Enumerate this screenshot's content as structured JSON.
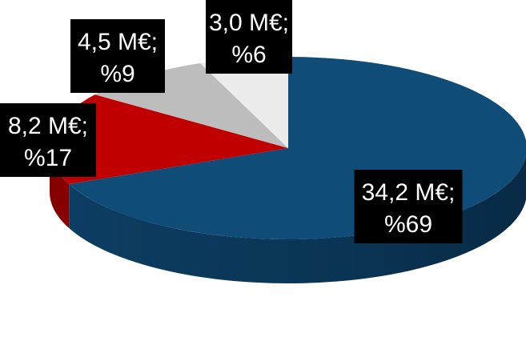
{
  "chart_data": {
    "type": "pie",
    "style": "3d",
    "title": "",
    "unit": "M€",
    "slices": [
      {
        "value": 34.2,
        "percent": 69,
        "label": "34,2 M€;",
        "percent_label": "%69",
        "color": "#0f4c78",
        "side_color": "#0a3557"
      },
      {
        "value": 8.2,
        "percent": 17,
        "label": "8,2 M€;",
        "percent_label": "%17",
        "color": "#c00000",
        "side_color": "#870000"
      },
      {
        "value": 4.5,
        "percent": 9,
        "label": "4,5 M€;",
        "percent_label": "%9",
        "color": "#bdbdbd",
        "side_color": "#8f8f8f"
      },
      {
        "value": 3.0,
        "percent": 6,
        "label": "3,0 M€;",
        "percent_label": "%6",
        "color": "#ececec",
        "side_color": "#b5b5b5"
      }
    ],
    "legend": "none"
  },
  "colors": {
    "label_background": "#000000",
    "label_text": "#ffffff"
  }
}
